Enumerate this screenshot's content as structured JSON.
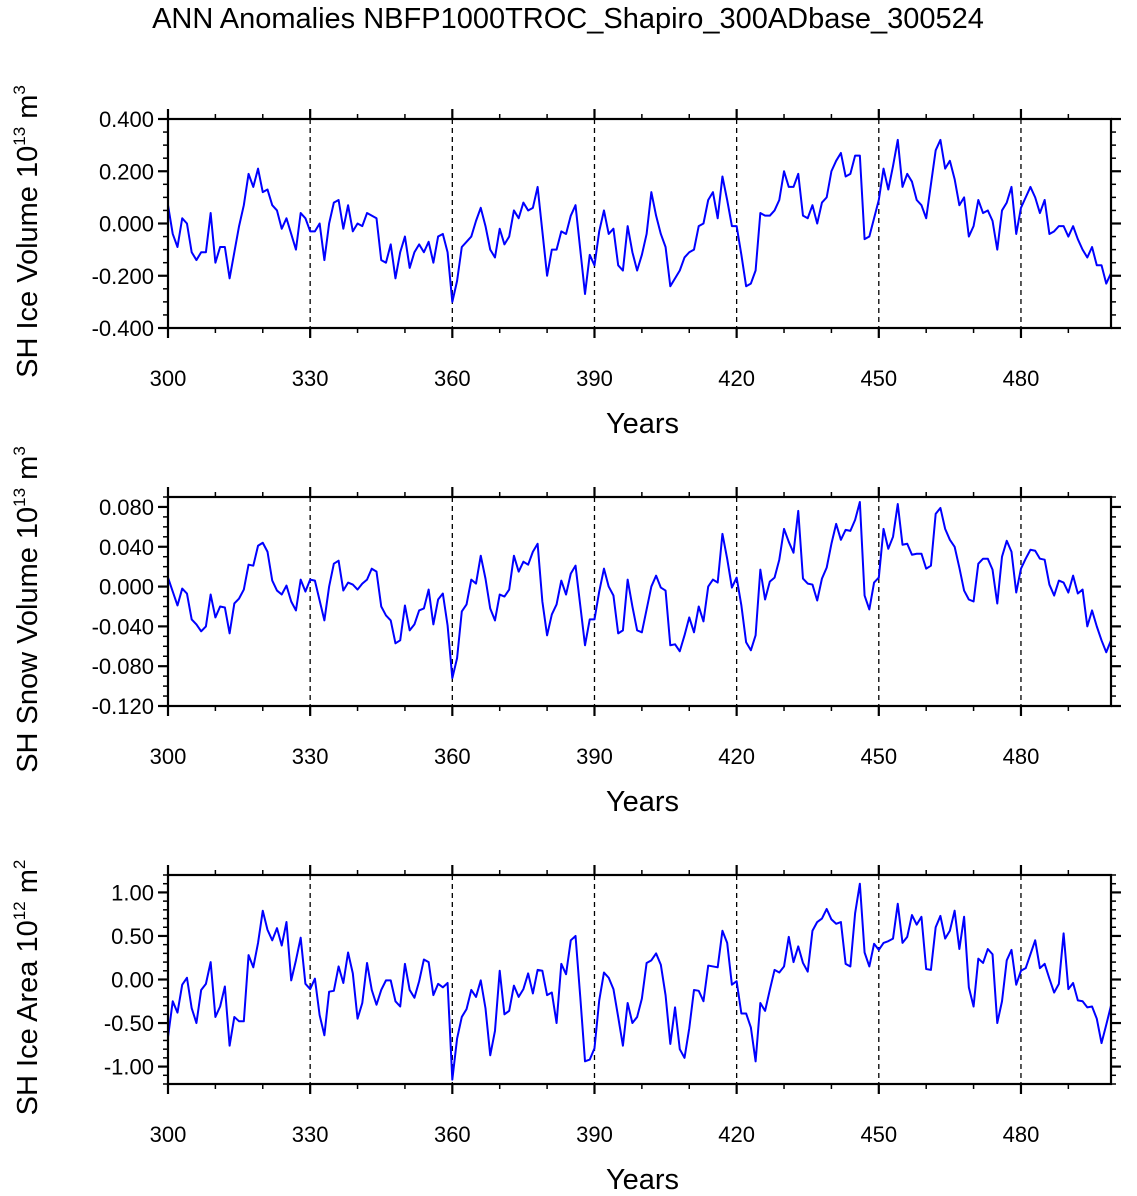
{
  "chart_data": {
    "title": "ANN Anomalies NBFP1000TROC_Shapiro_300ADbase_300524",
    "x_start": 300,
    "x_step": 1,
    "xlim": [
      300,
      499
    ],
    "x_ticks": [
      300,
      330,
      360,
      390,
      420,
      450,
      480
    ],
    "x_tick_labels": [
      "300",
      "330",
      "360",
      "390",
      "420",
      "450",
      "480"
    ],
    "x_minor_step": 10,
    "x_dashed_gridlines": [
      330,
      360,
      390,
      420,
      450,
      480
    ],
    "line_color": "#0000ff",
    "panels": [
      {
        "type": "line",
        "ylabel": {
          "main": "SH Ice Volume 10",
          "exp": "13",
          "unit": " m",
          "unit_exp": "3"
        },
        "xlabel": "Years",
        "ylim": [
          -0.4,
          0.4
        ],
        "y_ticks": [
          0.4,
          0.2,
          0.0,
          -0.2,
          -0.4
        ],
        "y_tick_labels": [
          "0.400",
          "0.200",
          "0.000",
          "-0.200",
          "-0.400"
        ],
        "y_minor_step": 0.05,
        "series": [
          {
            "name": "SH Ice Volume",
            "values": [
              0.07,
              -0.04,
              -0.09,
              0.02,
              0.0,
              -0.11,
              -0.14,
              -0.11,
              -0.11,
              0.04,
              -0.15,
              -0.09,
              -0.09,
              -0.21,
              -0.11,
              -0.01,
              0.07,
              0.19,
              0.14,
              0.21,
              0.12,
              0.13,
              0.07,
              0.05,
              -0.02,
              0.02,
              -0.04,
              -0.1,
              0.04,
              0.02,
              -0.03,
              -0.03,
              0.0,
              -0.14,
              0.0,
              0.08,
              0.09,
              -0.02,
              0.07,
              -0.03,
              0.0,
              -0.01,
              0.04,
              0.03,
              0.02,
              -0.14,
              -0.15,
              -0.08,
              -0.21,
              -0.11,
              -0.05,
              -0.17,
              -0.11,
              -0.08,
              -0.11,
              -0.07,
              -0.15,
              -0.05,
              -0.04,
              -0.11,
              -0.3,
              -0.22,
              -0.09,
              -0.07,
              -0.05,
              0.01,
              0.06,
              -0.01,
              -0.1,
              -0.13,
              -0.02,
              -0.08,
              -0.05,
              0.05,
              0.02,
              0.08,
              0.05,
              0.06,
              0.14,
              -0.03,
              -0.2,
              -0.1,
              -0.1,
              -0.03,
              -0.04,
              0.03,
              0.07,
              -0.1,
              -0.27,
              -0.12,
              -0.16,
              -0.03,
              0.05,
              -0.04,
              -0.02,
              -0.16,
              -0.18,
              -0.01,
              -0.11,
              -0.18,
              -0.12,
              -0.04,
              0.12,
              0.03,
              -0.04,
              -0.09,
              -0.24,
              -0.21,
              -0.18,
              -0.13,
              -0.11,
              -0.1,
              -0.01,
              0.0,
              0.09,
              0.12,
              0.02,
              0.18,
              0.09,
              -0.01,
              -0.01,
              -0.12,
              -0.24,
              -0.23,
              -0.18,
              0.04,
              0.03,
              0.03,
              0.05,
              0.09,
              0.2,
              0.14,
              0.14,
              0.19,
              0.03,
              0.02,
              0.07,
              0.0,
              0.08,
              0.1,
              0.2,
              0.24,
              0.27,
              0.18,
              0.19,
              0.26,
              0.26,
              -0.06,
              -0.05,
              0.02,
              0.09,
              0.21,
              0.13,
              0.22,
              0.32,
              0.14,
              0.19,
              0.16,
              0.09,
              0.07,
              0.02,
              0.15,
              0.28,
              0.32,
              0.21,
              0.24,
              0.17,
              0.07,
              0.1,
              -0.05,
              -0.01,
              0.09,
              0.04,
              0.05,
              0.01,
              -0.1,
              0.05,
              0.08,
              0.14,
              -0.04,
              0.06,
              0.1,
              0.14,
              0.1,
              0.04,
              0.09,
              -0.04,
              -0.03,
              -0.01,
              -0.01,
              -0.05,
              -0.01,
              -0.06,
              -0.1,
              -0.13,
              -0.09,
              -0.16,
              -0.16,
              -0.23,
              -0.19
            ]
          }
        ]
      },
      {
        "type": "line",
        "ylabel": {
          "main": "SH Snow Volume 10",
          "exp": "13",
          "unit": " m",
          "unit_exp": "3"
        },
        "xlabel": "Years",
        "ylim": [
          -0.12,
          0.09
        ],
        "y_ticks": [
          0.08,
          0.04,
          0.0,
          -0.04,
          -0.08,
          -0.12
        ],
        "y_tick_labels": [
          "0.080",
          "0.040",
          "0.000",
          "-0.040",
          "-0.080",
          "-0.120"
        ],
        "y_minor_step": 0.01,
        "series": [
          {
            "name": "SH Snow Volume",
            "values": [
              0.009,
              -0.005,
              -0.019,
              -0.002,
              -0.007,
              -0.033,
              -0.038,
              -0.045,
              -0.04,
              -0.008,
              -0.031,
              -0.02,
              -0.021,
              -0.047,
              -0.017,
              -0.012,
              -0.003,
              0.022,
              0.021,
              0.041,
              0.044,
              0.035,
              0.006,
              -0.004,
              -0.008,
              0.001,
              -0.015,
              -0.024,
              0.007,
              -0.005,
              0.007,
              0.006,
              -0.014,
              -0.034,
              0.0,
              0.023,
              0.026,
              -0.004,
              0.004,
              0.002,
              -0.003,
              0.003,
              0.007,
              0.018,
              0.015,
              -0.02,
              -0.029,
              -0.034,
              -0.057,
              -0.054,
              -0.019,
              -0.044,
              -0.038,
              -0.024,
              -0.022,
              -0.003,
              -0.038,
              -0.013,
              -0.007,
              -0.039,
              -0.092,
              -0.072,
              -0.025,
              -0.018,
              0.007,
              0.003,
              0.031,
              0.008,
              -0.022,
              -0.034,
              -0.008,
              -0.01,
              -0.003,
              0.031,
              0.015,
              0.025,
              0.022,
              0.035,
              0.043,
              -0.015,
              -0.049,
              -0.028,
              -0.018,
              0.006,
              -0.008,
              0.013,
              0.021,
              -0.019,
              -0.059,
              -0.033,
              -0.033,
              -0.005,
              0.018,
              0.0,
              -0.009,
              -0.047,
              -0.044,
              0.007,
              -0.02,
              -0.044,
              -0.046,
              -0.023,
              0.0,
              0.011,
              -0.001,
              -0.004,
              -0.059,
              -0.058,
              -0.065,
              -0.049,
              -0.031,
              -0.046,
              -0.02,
              -0.035,
              0.0,
              0.007,
              0.004,
              0.053,
              0.028,
              -0.001,
              0.009,
              -0.019,
              -0.056,
              -0.064,
              -0.049,
              0.017,
              -0.013,
              0.005,
              0.009,
              0.027,
              0.058,
              0.045,
              0.034,
              0.076,
              0.008,
              0.003,
              0.002,
              -0.014,
              0.008,
              0.019,
              0.043,
              0.063,
              0.047,
              0.057,
              0.056,
              0.067,
              0.085,
              -0.009,
              -0.023,
              0.004,
              0.009,
              0.058,
              0.038,
              0.05,
              0.083,
              0.042,
              0.043,
              0.032,
              0.033,
              0.033,
              0.018,
              0.021,
              0.073,
              0.079,
              0.058,
              0.047,
              0.04,
              0.019,
              -0.004,
              -0.013,
              -0.015,
              0.023,
              0.028,
              0.028,
              0.017,
              -0.017,
              0.03,
              0.046,
              0.035,
              -0.006,
              0.018,
              0.028,
              0.037,
              0.036,
              0.028,
              0.027,
              0.002,
              -0.009,
              0.006,
              0.004,
              -0.006,
              0.011,
              -0.007,
              -0.003,
              -0.04,
              -0.024,
              -0.04,
              -0.054,
              -0.066,
              -0.054
            ]
          }
        ]
      },
      {
        "type": "line",
        "ylabel": {
          "main": "SH Ice Area 10",
          "exp": "12",
          "unit": " m",
          "unit_exp": "2"
        },
        "xlabel": "Years",
        "ylim": [
          -1.2,
          1.2
        ],
        "y_ticks": [
          1.0,
          0.5,
          0.0,
          -0.5,
          -1.0
        ],
        "y_tick_labels": [
          "1.00",
          "0.50",
          "0.00",
          "-0.50",
          "-1.00"
        ],
        "y_minor_step": 0.1,
        "series": [
          {
            "name": "SH Ice Area",
            "values": [
              -0.66,
              -0.25,
              -0.38,
              -0.06,
              0.02,
              -0.33,
              -0.5,
              -0.12,
              -0.05,
              0.2,
              -0.43,
              -0.31,
              -0.08,
              -0.76,
              -0.43,
              -0.48,
              -0.48,
              0.28,
              0.14,
              0.42,
              0.79,
              0.57,
              0.45,
              0.59,
              0.39,
              0.66,
              -0.01,
              0.22,
              0.48,
              -0.05,
              -0.11,
              0.01,
              -0.41,
              -0.64,
              -0.14,
              -0.13,
              0.15,
              -0.04,
              0.31,
              0.07,
              -0.45,
              -0.27,
              0.19,
              -0.12,
              -0.29,
              -0.12,
              -0.01,
              -0.01,
              -0.25,
              -0.31,
              0.18,
              -0.12,
              -0.21,
              -0.02,
              0.23,
              0.2,
              -0.18,
              -0.05,
              -0.09,
              -0.04,
              -1.15,
              -0.68,
              -0.43,
              -0.34,
              -0.12,
              -0.2,
              -0.01,
              -0.33,
              -0.87,
              -0.59,
              0.1,
              -0.4,
              -0.36,
              -0.07,
              -0.2,
              -0.11,
              0.07,
              -0.16,
              0.11,
              0.1,
              -0.18,
              -0.15,
              -0.5,
              0.18,
              0.06,
              0.45,
              0.5,
              -0.2,
              -0.94,
              -0.92,
              -0.79,
              -0.24,
              0.08,
              0.02,
              -0.11,
              -0.43,
              -0.76,
              -0.27,
              -0.5,
              -0.43,
              -0.22,
              0.19,
              0.22,
              0.3,
              0.17,
              -0.18,
              -0.74,
              -0.32,
              -0.8,
              -0.9,
              -0.56,
              -0.12,
              -0.13,
              -0.25,
              0.16,
              0.15,
              0.14,
              0.56,
              0.42,
              -0.06,
              -0.02,
              -0.39,
              -0.39,
              -0.55,
              -0.94,
              -0.27,
              -0.36,
              -0.12,
              0.11,
              0.08,
              0.15,
              0.49,
              0.2,
              0.38,
              0.19,
              0.09,
              0.56,
              0.66,
              0.7,
              0.81,
              0.69,
              0.64,
              0.66,
              0.18,
              0.15,
              0.76,
              1.1,
              0.31,
              0.15,
              0.41,
              0.34,
              0.42,
              0.44,
              0.47,
              0.87,
              0.42,
              0.49,
              0.74,
              0.63,
              0.72,
              0.12,
              0.11,
              0.6,
              0.73,
              0.47,
              0.56,
              0.79,
              0.35,
              0.72,
              -0.09,
              -0.31,
              0.24,
              0.19,
              0.35,
              0.29,
              -0.5,
              -0.25,
              0.22,
              0.34,
              -0.06,
              0.1,
              0.13,
              0.29,
              0.45,
              0.13,
              0.18,
              0.01,
              -0.15,
              -0.05,
              0.53,
              -0.11,
              -0.04,
              -0.24,
              -0.25,
              -0.32,
              -0.31,
              -0.45,
              -0.73,
              -0.52,
              -0.3
            ]
          }
        ]
      }
    ]
  }
}
